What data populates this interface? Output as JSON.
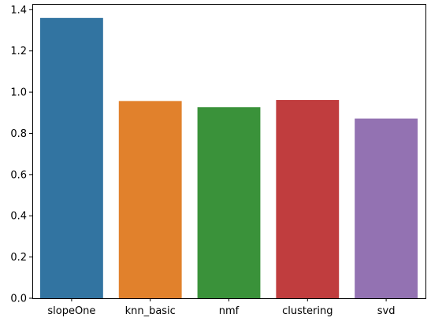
{
  "chart_data": {
    "type": "bar",
    "title": "",
    "xlabel": "",
    "ylabel": "",
    "categories": [
      "slopeOne",
      "knn_basic",
      "nmf",
      "clustering",
      "svd"
    ],
    "values": [
      1.36,
      0.957,
      0.927,
      0.962,
      0.872
    ],
    "colors": [
      "#3274a1",
      "#e1812c",
      "#3a923a",
      "#c03d3e",
      "#9372b2"
    ],
    "ylim": [
      0,
      1.428
    ],
    "yticks": [
      0.0,
      0.2,
      0.4,
      0.6,
      0.8,
      1.0,
      1.2,
      1.4
    ],
    "ytick_labels": [
      "0.0",
      "0.2",
      "0.4",
      "0.6",
      "0.8",
      "1.0",
      "1.2",
      "1.4"
    ],
    "grid": false,
    "legend": "none"
  }
}
